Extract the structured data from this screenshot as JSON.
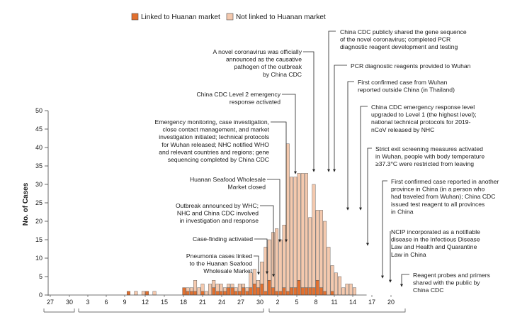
{
  "chart_data": {
    "type": "bar",
    "stacked": true,
    "title": "",
    "xlabel": "",
    "ylabel": "No. of Cases",
    "ylim": [
      0,
      50
    ],
    "y_ticks": [
      0,
      5,
      10,
      15,
      20,
      25,
      30,
      35,
      40,
      45,
      50
    ],
    "x_tick_labels": [
      "27",
      "30",
      "3",
      "6",
      "9",
      "12",
      "15",
      "18",
      "21",
      "24",
      "27",
      "30",
      "2",
      "5",
      "8",
      "11",
      "14",
      "17",
      "20"
    ],
    "legend_position": "top-center",
    "colors": {
      "linked": "#e2702f",
      "not_linked": "#f4c9ae",
      "outline": "#4a4a4a",
      "arrow": "#222222"
    },
    "series": [
      {
        "name": "Linked to Huanan market",
        "values": [
          0,
          0,
          0,
          0,
          0,
          0,
          0,
          0,
          0,
          0,
          0,
          0,
          0,
          0,
          0,
          0,
          0,
          0,
          0,
          0,
          0,
          1,
          0,
          0,
          0,
          0,
          1,
          0,
          0,
          0,
          0,
          0,
          0,
          0,
          0,
          0,
          2,
          1,
          1,
          1,
          0,
          1,
          0,
          0,
          2,
          1,
          1,
          1,
          2,
          2,
          1,
          1,
          2,
          1,
          2,
          3,
          2,
          3,
          1,
          4,
          2,
          1,
          1,
          2,
          1,
          2,
          2,
          4,
          2,
          2,
          2,
          2,
          4,
          2,
          1,
          0,
          1,
          0,
          0,
          0,
          0,
          0,
          0,
          0,
          0
        ]
      },
      {
        "name": "Not linked to Huanan market",
        "values": [
          0,
          0,
          0,
          0,
          0,
          0,
          0,
          0,
          0,
          0,
          0,
          0,
          0,
          0,
          0,
          0,
          0,
          0,
          0,
          0,
          0,
          0,
          0,
          1,
          0,
          1,
          0,
          0,
          1,
          0,
          0,
          0,
          0,
          0,
          0,
          0,
          0,
          1,
          1,
          3,
          2,
          2,
          1,
          3,
          2,
          2,
          2,
          1,
          1,
          1,
          1,
          2,
          1,
          1,
          4,
          4,
          2,
          6,
          12,
          11,
          15,
          17,
          14,
          17,
          40,
          30,
          30,
          29,
          31,
          31,
          19,
          28,
          19,
          21,
          19,
          13,
          7,
          6,
          5,
          2,
          3,
          3,
          2,
          0,
          0
        ]
      }
    ]
  },
  "legend": {
    "linked_label": "Linked to Huanan market",
    "not_linked_label": "Not linked to Huanan market"
  },
  "annotations": [
    {
      "id": "gene-sequence",
      "lines": [
        "China CDC publicly shared the gene sequence",
        "of the novel coronavirus; completed PCR",
        "diagnostic reagent development and testing"
      ]
    },
    {
      "id": "causative-pathogen",
      "lines": [
        "A novel coronavirus was officially",
        "announced as the causative",
        "pathogen of the outbreak",
        "by China CDC"
      ]
    },
    {
      "id": "pcr-reagents",
      "lines": [
        "PCR diagnostic reagents provided to Wuhan"
      ]
    },
    {
      "id": "first-outside-china",
      "lines": [
        "First confirmed case from Wuhan",
        "reported outside China (in Thailand)"
      ]
    },
    {
      "id": "level-2-response",
      "lines": [
        "China CDC Level 2 emergency",
        "response activated"
      ]
    },
    {
      "id": "level-1-response",
      "lines": [
        "China CDC emergency response level",
        "upgraded to Level 1 (the highest level);",
        "national technical protocols for 2019-",
        "nCoV released by NHC"
      ]
    },
    {
      "id": "emergency-monitoring",
      "lines": [
        "Emergency monitoring, case investigation,",
        "close contact management, and market",
        "investigation initiated; technical protocols",
        "for Wuhan released; NHC notified WHO",
        "and relevant countries and regions; gene",
        "sequencing completed by China CDC"
      ]
    },
    {
      "id": "exit-screening",
      "lines": [
        "Strict exit screening measures activated",
        "in Wuhan, people with body temperature",
        "≥37.3°C were restricted from leaving"
      ]
    },
    {
      "id": "market-closed",
      "lines": [
        "Huanan Seafood Wholesale",
        "Market closed"
      ]
    },
    {
      "id": "another-province",
      "lines": [
        "First confirmed case reported in another",
        "province in China (in a person who",
        "had traveled from Wuhan); China CDC",
        "issued test reagent to all provinces",
        "in China"
      ]
    },
    {
      "id": "outbreak-announced",
      "lines": [
        "Outbreak announced by WHC;",
        "NHC and China CDC involved",
        "in investigation and response"
      ]
    },
    {
      "id": "case-finding",
      "lines": [
        "Case-finding activated"
      ]
    },
    {
      "id": "ncip-notifiable",
      "lines": [
        "NCIP incorporated as a notifiable",
        "disease in the Infectious Disease",
        "Law and Health and Quarantine",
        "Law in China"
      ]
    },
    {
      "id": "pneumonia-linked",
      "lines": [
        "Pneumonia cases linked",
        "to the Huanan Seafood",
        "Wholesale Market"
      ]
    },
    {
      "id": "reagent-probes",
      "lines": [
        "Reagent probes and primers",
        "shared with the public by",
        "China CDC"
      ]
    }
  ]
}
